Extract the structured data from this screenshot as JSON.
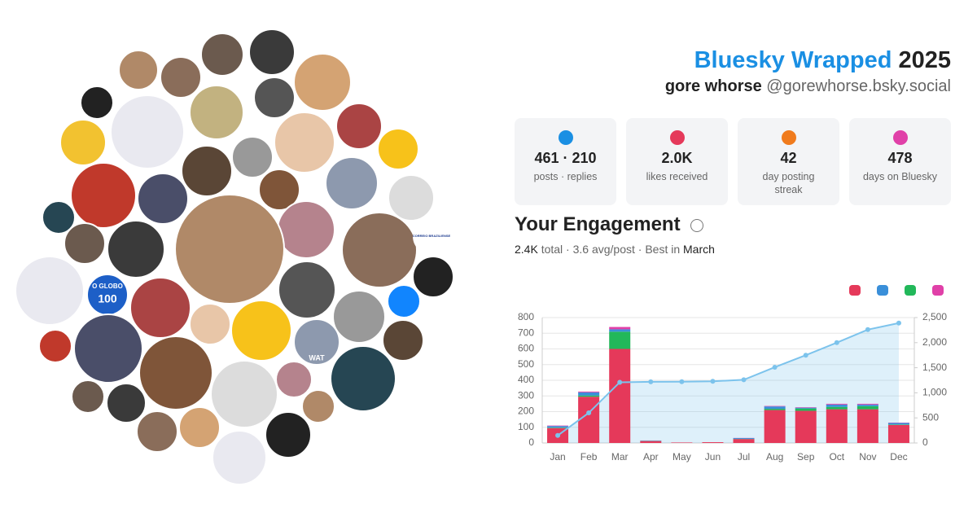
{
  "header": {
    "title": "Bluesky Wrapped",
    "year": "2025",
    "name": "gore whorse",
    "handle": "@gorewhorse.bsky.social"
  },
  "avatar_texts": [
    "O GLOBO",
    "100",
    "CORREIO BRAZILIENSE",
    "WAT"
  ],
  "stats": [
    {
      "value": "461 · 210",
      "label": "posts · replies"
    },
    {
      "value": "2.0K",
      "label": "likes received"
    },
    {
      "value": "42",
      "label": "day posting streak"
    },
    {
      "value": "478",
      "label": "days on Bluesky"
    }
  ],
  "engagement": {
    "title": "Your Engagement",
    "total": "2.4K",
    "summary": "total · 3.6 avg/post · Best in",
    "best": "March"
  },
  "chart_data": {
    "type": "bar",
    "categories": [
      "Jan",
      "Feb",
      "Mar",
      "Apr",
      "May",
      "Jun",
      "Jul",
      "Aug",
      "Sep",
      "Oct",
      "Nov",
      "Dec"
    ],
    "series": [
      {
        "color": "#e5395a",
        "values": [
          95,
          295,
          600,
          12,
          3,
          5,
          25,
          210,
          205,
          215,
          215,
          115
        ]
      },
      {
        "color": "#22b85a",
        "values": [
          3,
          8,
          110,
          1,
          0,
          0,
          1,
          8,
          15,
          15,
          20,
          3
        ]
      },
      {
        "color": "#3a8fd9",
        "values": [
          10,
          20,
          15,
          2,
          0,
          0,
          5,
          15,
          5,
          15,
          10,
          10
        ]
      },
      {
        "color": "#e040a8",
        "values": [
          3,
          5,
          15,
          1,
          0,
          0,
          1,
          3,
          3,
          5,
          5,
          2
        ]
      },
      {
        "color": "#7cc3ec",
        "axis": "y2",
        "values": [
          150,
          600,
          1210,
          1220,
          1222,
          1230,
          1260,
          1510,
          1750,
          2000,
          2260,
          2390
        ]
      }
    ],
    "ylim": [
      0,
      800
    ],
    "yticks": [
      0,
      100,
      200,
      300,
      400,
      500,
      600,
      700,
      800
    ],
    "y2lim": [
      0,
      2500
    ],
    "y2ticks": [
      0,
      500,
      {
        "value": 1000,
        "label": "1,000"
      },
      {
        "value": 1500,
        "label": "1,500"
      },
      {
        "value": 2000,
        "label": "2,000"
      },
      {
        "value": 2500,
        "label": "2,500"
      }
    ],
    "grid": true
  }
}
